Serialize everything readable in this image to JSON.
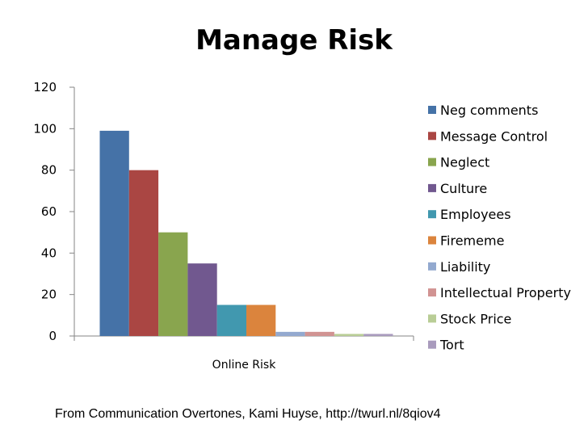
{
  "slide": {
    "caption": "From Communication Overtones, Kami Huyse, http://twurl.nl/8qiov4"
  },
  "chart_data": {
    "type": "bar",
    "title": "Manage Risk",
    "categories": [
      "Online Risk"
    ],
    "ylim": [
      0,
      120
    ],
    "yticks": [
      0,
      20,
      40,
      60,
      80,
      100,
      120
    ],
    "grid": false,
    "legend_position": "right",
    "series": [
      {
        "name": "Neg comments",
        "values": [
          99
        ],
        "color": "#4572A7"
      },
      {
        "name": "Message Control",
        "values": [
          80
        ],
        "color": "#AA4643"
      },
      {
        "name": "Neglect",
        "values": [
          50
        ],
        "color": "#89A54E"
      },
      {
        "name": "Culture",
        "values": [
          35
        ],
        "color": "#71588F"
      },
      {
        "name": "Employees",
        "values": [
          15
        ],
        "color": "#4198AF"
      },
      {
        "name": "Firememe",
        "values": [
          15
        ],
        "color": "#DB843D"
      },
      {
        "name": "Liability",
        "values": [
          2
        ],
        "color": "#93A9CF"
      },
      {
        "name": "Intellectual Property",
        "values": [
          2
        ],
        "color": "#D19392"
      },
      {
        "name": "Stock Price",
        "values": [
          1
        ],
        "color": "#B9CD96"
      },
      {
        "name": "Tort",
        "values": [
          1
        ],
        "color": "#A99BBD"
      }
    ]
  }
}
